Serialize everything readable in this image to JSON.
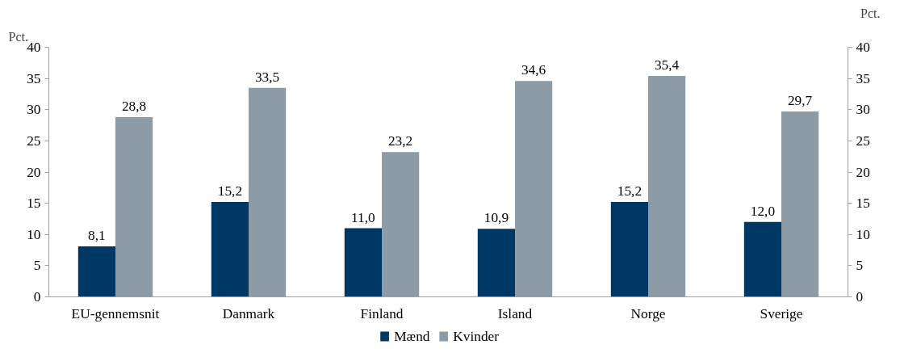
{
  "chart_data": {
    "type": "bar",
    "categories": [
      "EU-gennemsnit",
      "Danmark",
      "Finland",
      "Island",
      "Norge",
      "Sverige"
    ],
    "series": [
      {
        "name": "Mænd",
        "color": "#003865",
        "values": [
          8.1,
          15.2,
          11.0,
          10.9,
          15.2,
          12.0
        ],
        "value_labels": [
          "8,1",
          "15,2",
          "11,0",
          "10,9",
          "15,2",
          "12,0"
        ]
      },
      {
        "name": "Kvinder",
        "color": "#8c9ba5",
        "values": [
          28.8,
          33.5,
          23.2,
          34.6,
          35.4,
          29.7
        ],
        "value_labels": [
          "28,8",
          "33,5",
          "23,2",
          "34,6",
          "35,4",
          "29,7"
        ]
      }
    ],
    "ylabel": "Pct.",
    "y2label": "Pct.",
    "ylim": [
      0,
      40
    ],
    "yticks": [
      0,
      5,
      10,
      15,
      20,
      25,
      30,
      35,
      40
    ],
    "y2lim": [
      0,
      40
    ],
    "y2ticks": [
      0,
      5,
      10,
      15,
      20,
      25,
      30,
      35,
      40
    ],
    "grid": false,
    "legend": "bottom"
  }
}
